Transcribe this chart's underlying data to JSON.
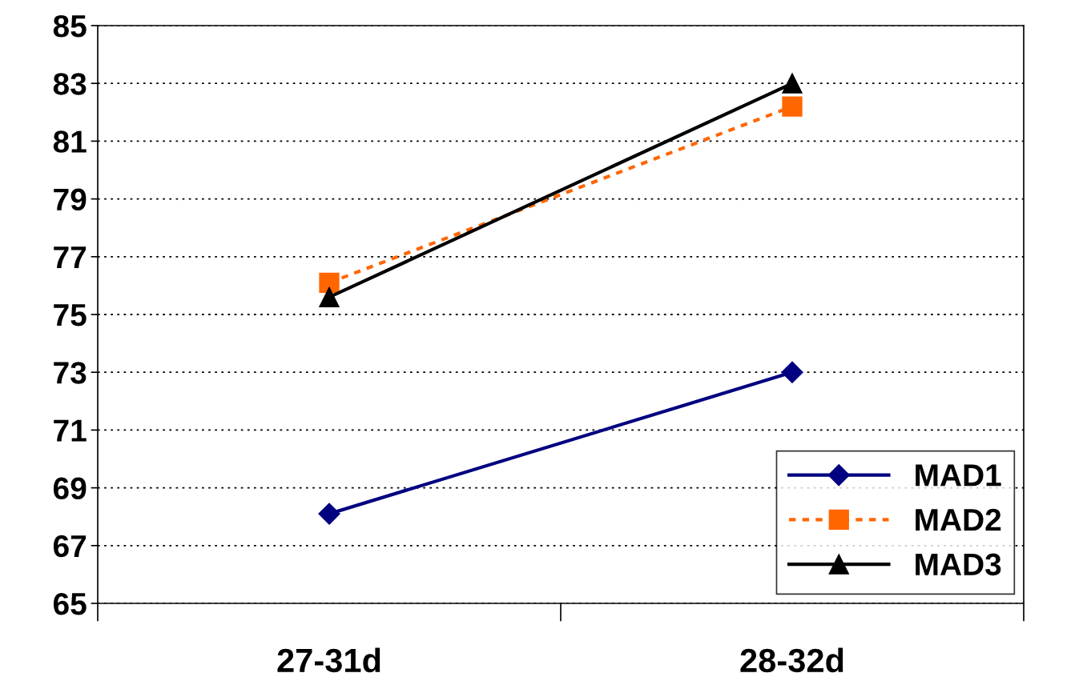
{
  "chart_data": {
    "type": "line",
    "categories": [
      "27-31d",
      "28-32d"
    ],
    "series": [
      {
        "name": "MAD1",
        "color": "#000080",
        "marker": "diamond",
        "line_style": "solid",
        "values": [
          68.1,
          73.0
        ]
      },
      {
        "name": "MAD2",
        "color": "#ff6600",
        "marker": "square",
        "line_style": "dashed",
        "values": [
          76.1,
          82.2
        ]
      },
      {
        "name": "MAD3",
        "color": "#000000",
        "marker": "triangle",
        "line_style": "solid",
        "values": [
          75.6,
          83.0
        ]
      }
    ],
    "ylim": [
      65,
      85
    ],
    "yticks": [
      65,
      67,
      69,
      71,
      73,
      75,
      77,
      79,
      81,
      83,
      85
    ],
    "grid": "y",
    "legend": "bottom right"
  }
}
